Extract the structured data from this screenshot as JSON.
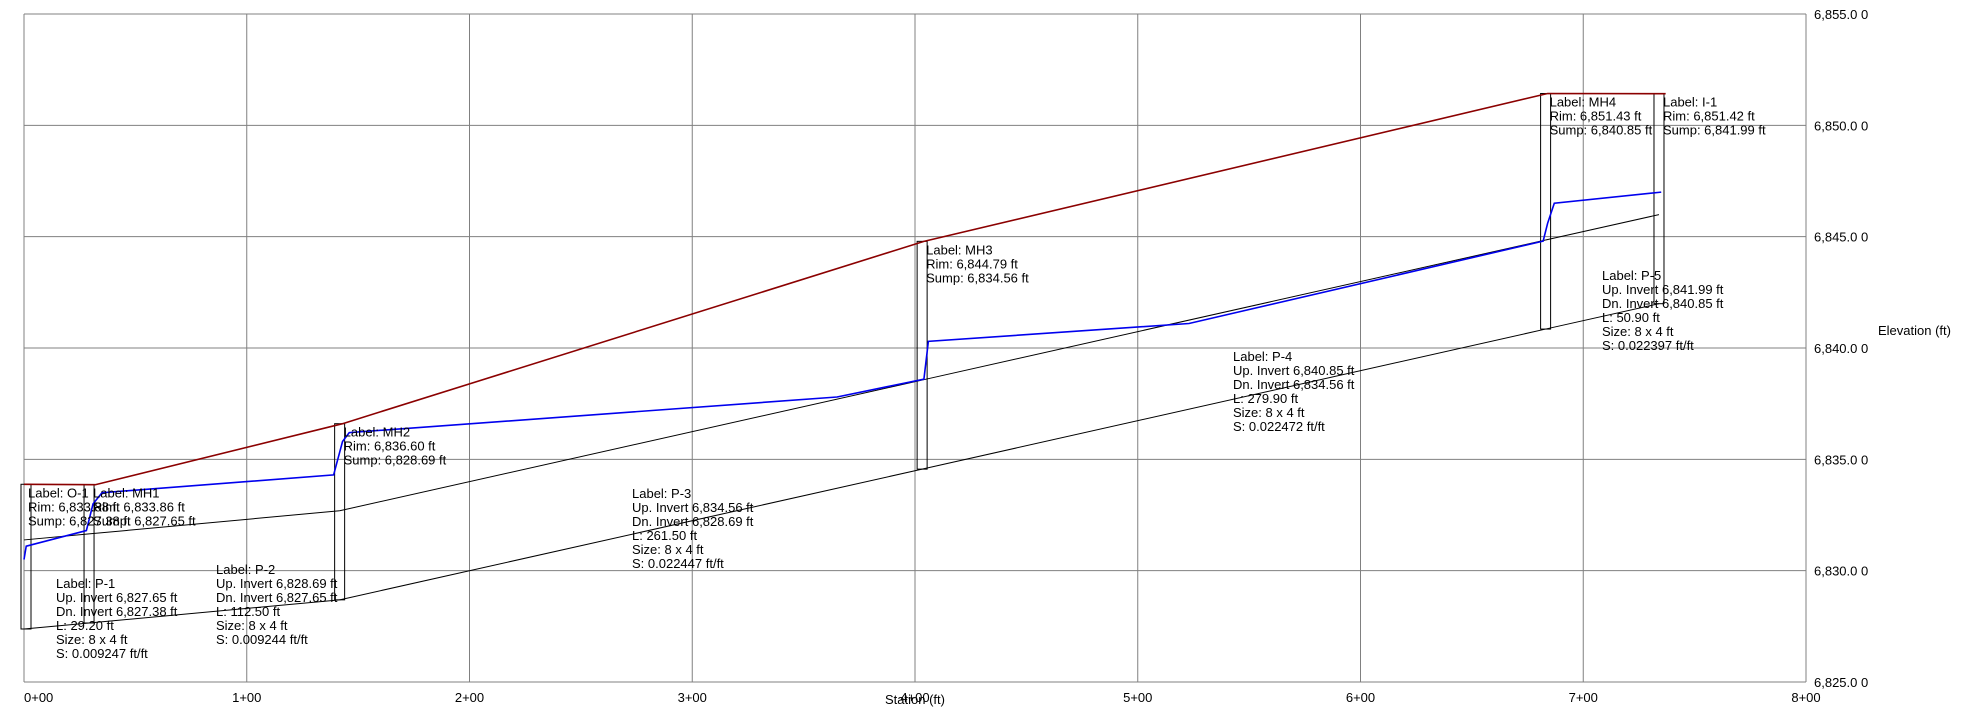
{
  "chart_data": {
    "type": "line",
    "xlabel": "Station (ft)",
    "ylabel": "Elevation (ft)",
    "xlim": [
      0,
      800
    ],
    "ylim": [
      6825.0,
      6855.0
    ],
    "x_ticks": [
      0,
      100,
      200,
      300,
      400,
      500,
      600,
      700,
      800
    ],
    "x_tick_labels": [
      "0+00",
      "1+00",
      "2+00",
      "3+00",
      "4+00",
      "5+00",
      "6+00",
      "7+00",
      "8+00"
    ],
    "y_ticks": [
      6825,
      6830,
      6835,
      6840,
      6845,
      6850,
      6855
    ],
    "y_tick_labels": [
      "6,825.0 0",
      "6,830.0 0",
      "6,835.0 0",
      "6,840.0 0",
      "6,845.0 0",
      "6,850.0 0",
      "6,855.0 0"
    ],
    "grid": true,
    "colors": {
      "ground": "#8b0000",
      "hgl": "#0000ee",
      "pipe": "#000000",
      "grid": "#808080"
    },
    "series": [
      {
        "x": [
          0,
          32,
          143,
          404,
          684,
          737
        ],
        "y": [
          6833.88,
          6833.86,
          6836.6,
          6844.79,
          6851.43,
          6851.42
        ]
      },
      {
        "x": [
          0,
          1,
          28,
          31,
          35,
          139,
          143,
          146,
          365,
          404,
          406,
          523,
          682,
          684,
          687,
          735
        ],
        "y": [
          6830.5,
          6831.1,
          6831.8,
          6833.0,
          6833.5,
          6834.3,
          6835.8,
          6836.2,
          6837.8,
          6838.6,
          6840.3,
          6841.1,
          6844.8,
          6845.6,
          6846.5,
          6847.0
        ]
      }
    ],
    "structures": [
      {
        "label": "Label: O-1",
        "rim": "Rim: 6,833.88 ft",
        "sump": "Sump: 6,827.38 ft",
        "station": 0,
        "rim_elev": 6833.88,
        "sump_elev": 6827.38
      },
      {
        "label": "Label: MH1",
        "rim": "Rim: 6,833.86 ft",
        "sump": "Sump: 6,827.65 ft",
        "station": 29.2,
        "rim_elev": 6833.86,
        "sump_elev": 6827.65
      },
      {
        "label": "Label: MH2",
        "rim": "Rim: 6,836.60 ft",
        "sump": "Sump: 6,828.69 ft",
        "station": 141.7,
        "rim_elev": 6836.6,
        "sump_elev": 6828.69
      },
      {
        "label": "Label: MH3",
        "rim": "Rim: 6,844.79 ft",
        "sump": "Sump: 6,834.56 ft",
        "station": 403.2,
        "rim_elev": 6844.79,
        "sump_elev": 6834.56
      },
      {
        "label": "Label: MH4",
        "rim": "Rim: 6,851.43 ft",
        "sump": "Sump: 6,840.85 ft",
        "station": 683.1,
        "rim_elev": 6851.43,
        "sump_elev": 6840.85
      },
      {
        "label": "Label: I-1",
        "rim": "Rim: 6,851.42 ft",
        "sump": "Sump: 6,841.99 ft",
        "station": 734.0,
        "rim_elev": 6851.42,
        "sump_elev": 6841.99
      }
    ],
    "pipes": [
      {
        "label": "Label: P-1",
        "up_invert": "Up. Invert 6,827.65 ft",
        "dn_invert": "Dn. Invert 6,827.38 ft",
        "length": "L: 29.20 ft",
        "size": "Size: 8 x 4 ft",
        "slope": "S: 0.009247 ft/ft",
        "start_station": 0,
        "end_station": 29.2,
        "dn_elev": 6827.38,
        "up_elev": 6827.65
      },
      {
        "label": "Label: P-2",
        "up_invert": "Up. Invert 6,828.69 ft",
        "dn_invert": "Dn. Invert 6,827.65 ft",
        "length": "L: 112.50 ft",
        "size": "Size: 8 x 4 ft",
        "slope": "S: 0.009244 ft/ft",
        "start_station": 29.2,
        "end_station": 141.7,
        "dn_elev": 6827.65,
        "up_elev": 6828.69
      },
      {
        "label": "Label: P-3",
        "up_invert": "Up. Invert 6,834.56 ft",
        "dn_invert": "Dn. Invert 6,828.69 ft",
        "length": "L: 261.50 ft",
        "size": "Size: 8 x 4 ft",
        "slope": "S: 0.022447 ft/ft",
        "start_station": 141.7,
        "end_station": 403.2,
        "dn_elev": 6828.69,
        "up_elev": 6834.56
      },
      {
        "label": "Label: P-4",
        "up_invert": "Up. Invert 6,840.85 ft",
        "dn_invert": "Dn. Invert 6,834.56 ft",
        "length": "L: 279.90 ft",
        "size": "Size: 8 x 4 ft",
        "slope": "S: 0.022472 ft/ft",
        "start_station": 403.2,
        "end_station": 683.1,
        "dn_elev": 6834.56,
        "up_elev": 6840.85
      },
      {
        "label": "Label: P-5",
        "up_invert": "Up. Invert 6,841.99 ft",
        "dn_invert": "Dn. Invert 6,840.85 ft",
        "length": "L: 50.90 ft",
        "size": "Size: 8 x 4 ft",
        "slope": "S: 0.022397 ft/ft",
        "start_station": 683.1,
        "end_station": 734.0,
        "dn_elev": 6840.85,
        "up_elev": 6841.99
      }
    ]
  }
}
